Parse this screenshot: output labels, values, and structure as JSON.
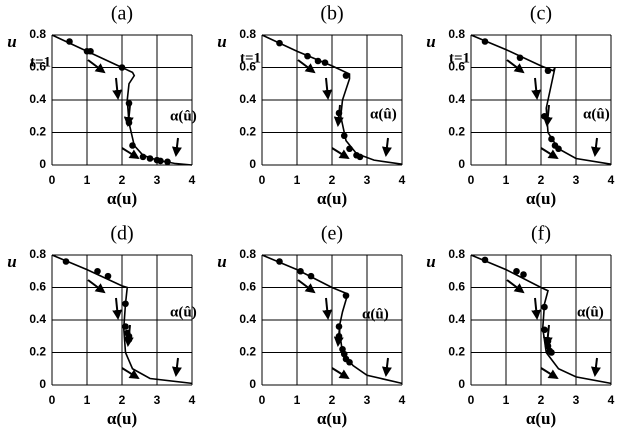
{
  "chart_data": [
    {
      "type": "line",
      "title": "(a)",
      "xlabel": "α(u)",
      "ylabel": "u",
      "xlim": [
        0,
        4
      ],
      "ylim": [
        0,
        0.8
      ],
      "xticks": [
        0,
        1,
        2,
        3,
        4
      ],
      "yticks": [
        0,
        0.2,
        0.4,
        0.6,
        0.8
      ],
      "grid": true,
      "color": "#000000",
      "curve": {
        "x": [
          0,
          1,
          2,
          2.3,
          2.35,
          2.2,
          2.15,
          2.2,
          2.35,
          2.6,
          3,
          3.5,
          4
        ],
        "values": [
          0.8,
          0.7,
          0.6,
          0.57,
          0.55,
          0.5,
          0.4,
          0.26,
          0.12,
          0.06,
          0.03,
          0.01,
          0
        ]
      },
      "points": {
        "x": [
          0.5,
          1,
          1.1,
          2,
          2.2,
          2.2,
          2.3,
          2.6,
          2.8,
          3,
          3.1,
          3.3
        ],
        "values": [
          0.76,
          0.7,
          0.7,
          0.6,
          0.38,
          0.26,
          0.12,
          0.05,
          0.04,
          0.03,
          0.025,
          0.02
        ]
      },
      "annotations": [
        "t=1",
        "α(û)"
      ]
    },
    {
      "type": "line",
      "title": "(b)",
      "xlabel": "α(u)",
      "ylabel": "u",
      "xlim": [
        0,
        4
      ],
      "ylim": [
        0,
        0.8
      ],
      "xticks": [
        0,
        1,
        2,
        3,
        4
      ],
      "yticks": [
        0,
        0.2,
        0.4,
        0.6,
        0.8
      ],
      "grid": true,
      "color": "#000000",
      "curve": {
        "x": [
          0,
          1,
          2,
          2.5,
          2.5,
          2.3,
          2.25,
          2.4,
          2.7,
          3.2,
          4
        ],
        "values": [
          0.8,
          0.7,
          0.61,
          0.56,
          0.53,
          0.4,
          0.3,
          0.15,
          0.07,
          0.03,
          0.005
        ]
      },
      "points": {
        "x": [
          0.5,
          1.3,
          1.6,
          1.8,
          2.4,
          2.2,
          2.35,
          2.5,
          2.7,
          2.8
        ],
        "values": [
          0.75,
          0.67,
          0.64,
          0.63,
          0.55,
          0.32,
          0.18,
          0.1,
          0.06,
          0.05
        ]
      },
      "annotations": [
        "t=1",
        "α(û)"
      ]
    },
    {
      "type": "line",
      "title": "(c)",
      "xlabel": "α(u)",
      "ylabel": "u",
      "xlim": [
        0,
        4
      ],
      "ylim": [
        0,
        0.8
      ],
      "xticks": [
        0,
        1,
        2,
        3,
        4
      ],
      "yticks": [
        0,
        0.2,
        0.4,
        0.6,
        0.8
      ],
      "grid": true,
      "color": "#000000",
      "curve": {
        "x": [
          0,
          1,
          2,
          2.35,
          2.4,
          2.3,
          2.15,
          2.2,
          2.5,
          3,
          4
        ],
        "values": [
          0.8,
          0.71,
          0.61,
          0.58,
          0.6,
          0.5,
          0.35,
          0.2,
          0.1,
          0.04,
          0.005
        ]
      },
      "points": {
        "x": [
          0.4,
          1.4,
          2.2,
          2.1,
          2.3,
          2.4,
          2.5
        ],
        "values": [
          0.76,
          0.66,
          0.58,
          0.3,
          0.16,
          0.12,
          0.1
        ]
      },
      "annotations": [
        "t=1",
        "α(û)"
      ]
    },
    {
      "type": "line",
      "title": "(d)",
      "xlabel": "α(u)",
      "ylabel": "u",
      "xlim": [
        0,
        4
      ],
      "ylim": [
        0,
        0.8
      ],
      "xticks": [
        0,
        1,
        2,
        3,
        4
      ],
      "yticks": [
        0,
        0.2,
        0.4,
        0.6,
        0.8
      ],
      "grid": true,
      "color": "#000000",
      "curve": {
        "x": [
          0,
          1,
          2,
          2.15,
          2.1,
          2.05,
          2.1,
          2.3,
          2.8,
          4
        ],
        "values": [
          0.8,
          0.71,
          0.61,
          0.6,
          0.5,
          0.35,
          0.2,
          0.1,
          0.04,
          0.01
        ]
      },
      "points": {
        "x": [
          0.4,
          1.3,
          1.6,
          2.1,
          2.1,
          2.15,
          2.2,
          2.2
        ],
        "values": [
          0.76,
          0.7,
          0.67,
          0.5,
          0.36,
          0.32,
          0.3,
          0.28
        ]
      },
      "annotations": [
        "α(û)"
      ]
    },
    {
      "type": "line",
      "title": "(e)",
      "xlabel": "α(u)",
      "ylabel": "u",
      "xlim": [
        0,
        4
      ],
      "ylim": [
        0,
        0.8
      ],
      "xticks": [
        0,
        1,
        2,
        3,
        4
      ],
      "yticks": [
        0,
        0.2,
        0.4,
        0.6,
        0.8
      ],
      "grid": true,
      "color": "#000000",
      "curve": {
        "x": [
          0,
          1,
          2,
          2.45,
          2.3,
          2.2,
          2.3,
          2.6,
          3,
          4
        ],
        "values": [
          0.8,
          0.71,
          0.6,
          0.56,
          0.45,
          0.35,
          0.2,
          0.12,
          0.06,
          0.01
        ]
      },
      "points": {
        "x": [
          0.5,
          1.1,
          1.4,
          2.4,
          2.2,
          2.2,
          2.3,
          2.35,
          2.4,
          2.5
        ],
        "values": [
          0.76,
          0.7,
          0.67,
          0.55,
          0.36,
          0.3,
          0.22,
          0.19,
          0.16,
          0.14
        ]
      },
      "annotations": [
        "α(û)"
      ]
    },
    {
      "type": "line",
      "title": "(f)",
      "xlabel": "α(u)",
      "ylabel": "u",
      "xlim": [
        0,
        4
      ],
      "ylim": [
        0,
        0.8
      ],
      "xticks": [
        0,
        1,
        2,
        3,
        4
      ],
      "yticks": [
        0,
        0.2,
        0.4,
        0.6,
        0.8
      ],
      "grid": true,
      "color": "#000000",
      "curve": {
        "x": [
          0,
          1,
          2,
          2.2,
          2.1,
          2.05,
          2.15,
          2.5,
          3,
          4
        ],
        "values": [
          0.8,
          0.71,
          0.6,
          0.58,
          0.5,
          0.35,
          0.2,
          0.1,
          0.05,
          0.01
        ]
      },
      "points": {
        "x": [
          0.4,
          1.3,
          1.5,
          2.1,
          2.1,
          2.2,
          2.2,
          2.25,
          2.3
        ],
        "values": [
          0.77,
          0.7,
          0.68,
          0.48,
          0.34,
          0.27,
          0.24,
          0.21,
          0.2
        ]
      },
      "annotations": [
        "α(û)"
      ]
    }
  ]
}
